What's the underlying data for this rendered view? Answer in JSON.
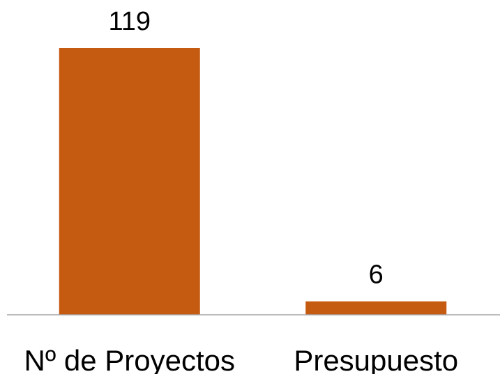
{
  "chart_data": {
    "type": "bar",
    "categories": [
      "Nº de Proyectos",
      "Presupuesto"
    ],
    "values": [
      119,
      6
    ],
    "data_labels": [
      "119",
      "6"
    ],
    "ylim": [
      0,
      119
    ],
    "grid": false,
    "legend": "none",
    "title": "",
    "xlabel": "",
    "ylabel": ""
  },
  "colors": {
    "bar": "#C55A11",
    "axis": "#A6A6A6",
    "text": "#000000"
  }
}
